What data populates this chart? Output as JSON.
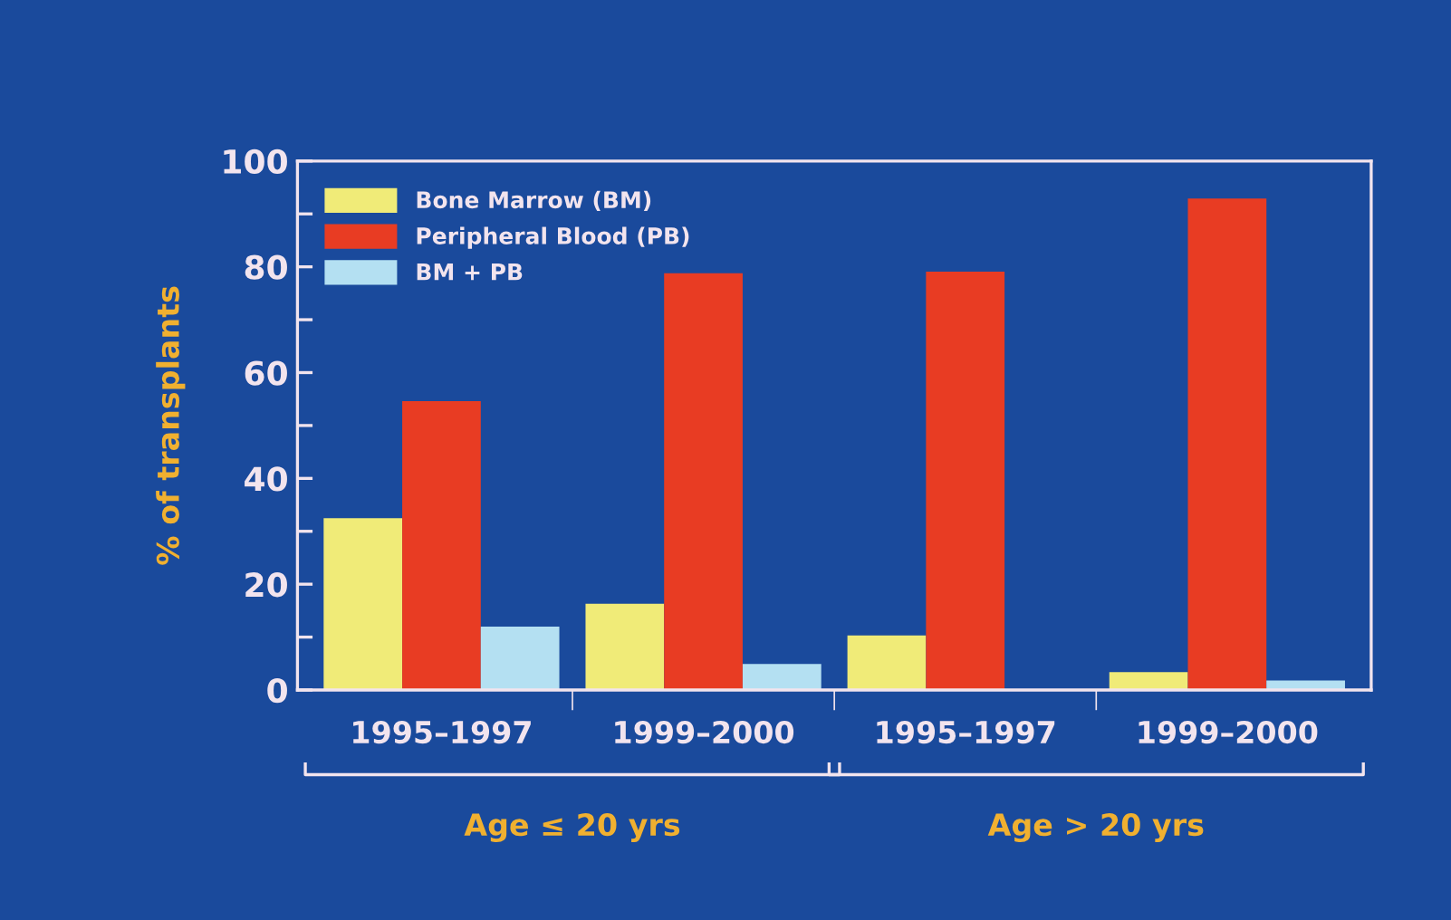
{
  "chart_data": {
    "type": "bar",
    "ylabel": "% of transplants",
    "categories": [
      "1995–1997",
      "1999–2000",
      "1995–1997",
      "1999–2000"
    ],
    "series": [
      {
        "name": "Bone Marrow (BM)",
        "color": "#f0eb78",
        "values": [
          32.5,
          16.3,
          10.3,
          3.4
        ]
      },
      {
        "name": "Peripheral Blood (PB)",
        "color": "#e83c23",
        "values": [
          54.6,
          78.8,
          79.1,
          92.9
        ]
      },
      {
        "name": "BM + PB",
        "color": "#b4e0f2",
        "values": [
          12.0,
          4.9,
          0,
          1.8
        ]
      }
    ],
    "ylim": [
      0,
      100
    ],
    "yticks": [
      0,
      {
        "value": 10,
        "label": null
      },
      20,
      {
        "value": 30,
        "label": null
      },
      40,
      {
        "value": 50,
        "label": null
      },
      60,
      {
        "value": 70,
        "label": null
      },
      80,
      {
        "value": 90,
        "label": null
      },
      100
    ],
    "annotations": [
      "Age ≤ 20 yrs",
      "Age > 20 yrs"
    ],
    "legend": "top left",
    "grid": false
  }
}
